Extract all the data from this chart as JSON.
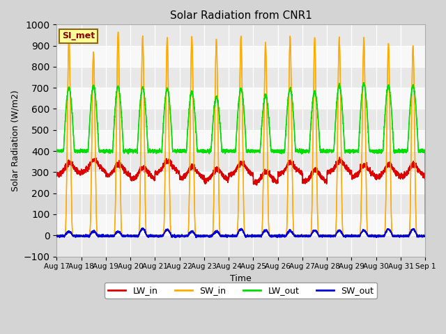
{
  "title": "Solar Radiation from CNR1",
  "xlabel": "Time",
  "ylabel": "Solar Radiation (W/m2)",
  "ylim": [
    -100,
    1000
  ],
  "fig_bg_color": "#d4d4d4",
  "plot_bg_color": "#f0f0f0",
  "annotation_text": "SI_met",
  "annotation_color": "#8B0000",
  "annotation_bg": "#ffff99",
  "annotation_border": "#8B6914",
  "n_days": 15,
  "line_colors": {
    "LW_in": "#dd0000",
    "SW_in": "#ffaa00",
    "LW_out": "#00dd00",
    "SW_out": "#0000dd"
  },
  "line_width": 1.0,
  "grid_color": "#ffffff",
  "tick_labels": [
    "Aug 17",
    "Aug 18",
    "Aug 19",
    "Aug 20",
    "Aug 21",
    "Aug 22",
    "Aug 23",
    "Aug 24",
    "Aug 25",
    "Aug 26",
    "Aug 27",
    "Aug 28",
    "Aug 29",
    "Aug 30",
    "Aug 31",
    "Sep 1"
  ],
  "legend_labels": [
    "LW_in",
    "SW_in",
    "LW_out",
    "SW_out"
  ],
  "sw_in_peaks": [
    940,
    870,
    960,
    940,
    935,
    940,
    930,
    945,
    915,
    940,
    935,
    940,
    930,
    910,
    900
  ],
  "lw_out_peaks": [
    700,
    710,
    705,
    700,
    695,
    680,
    655,
    695,
    665,
    695,
    680,
    710,
    720,
    710,
    710
  ],
  "lw_out_base": 400,
  "lw_in_base": 300
}
